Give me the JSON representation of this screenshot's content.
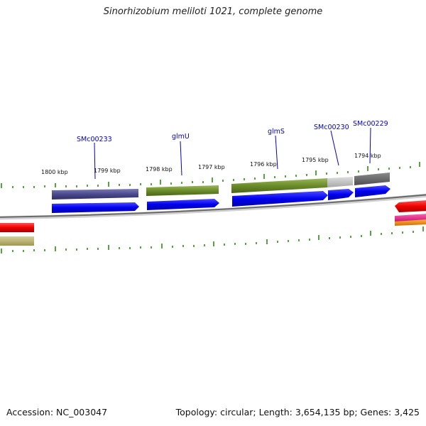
{
  "title": "Sinorhizobium meliloti 1021, complete genome",
  "footer": {
    "accession": "Accession: NC_003047",
    "topology": "Topology: circular; Length: 3,654,135 bp; Genes: 3,425"
  },
  "kbp_labels": [
    "1800 kbp",
    "1799 kbp",
    "1798 kbp",
    "1797 kbp",
    "1796 kbp",
    "1795 kbp",
    "1794 kbp"
  ],
  "gene_labels": [
    "SMc00233",
    "glmU",
    "glmS",
    "SMc00230",
    "SMc00229"
  ],
  "colors": {
    "backbone": "#7a7a7a",
    "tick": "#2d8a12",
    "cds_arrow": "#0000ee",
    "gene_purple": "#4b4a8c",
    "gene_olive": "#6b8c2a",
    "gene_light_grey": "#bdbdbd",
    "gene_dark_grey": "#6a6a6a",
    "red": "#ee0000",
    "magenta": "#e0208a",
    "orange": "#f08a00",
    "khaki": "#b8b070",
    "label_blue": "#0000cc"
  }
}
